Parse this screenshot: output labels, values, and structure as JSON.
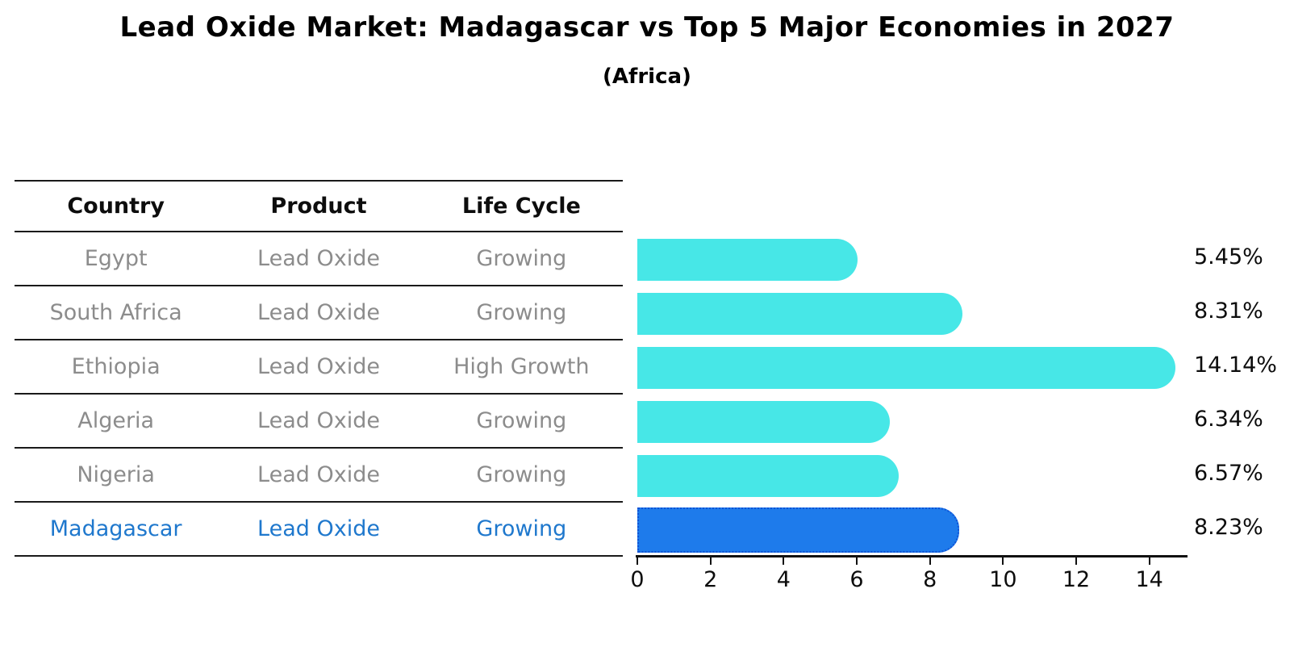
{
  "title": "Lead Oxide Market: Madagascar vs Top 5 Major Economies in 2027",
  "subtitle": "(Africa)",
  "table": {
    "headers": [
      "Country",
      "Product",
      "Life Cycle"
    ],
    "rows": [
      {
        "country": "Egypt",
        "product": "Lead Oxide",
        "life_cycle": "Growing",
        "value_label": "5.45%",
        "highlight": false
      },
      {
        "country": "South Africa",
        "product": "Lead Oxide",
        "life_cycle": "Growing",
        "value_label": "8.31%",
        "highlight": false
      },
      {
        "country": "Ethiopia",
        "product": "Lead Oxide",
        "life_cycle": "High Growth",
        "value_label": "14.14%",
        "highlight": false
      },
      {
        "country": "Algeria",
        "product": "Lead Oxide",
        "life_cycle": "Growing",
        "value_label": "6.34%",
        "highlight": false
      },
      {
        "country": "Nigeria",
        "product": "Lead Oxide",
        "life_cycle": "Growing",
        "value_label": "6.57%",
        "highlight": false
      },
      {
        "country": "Madagascar",
        "product": "Lead Oxide",
        "life_cycle": "Growing",
        "value_label": "8.23%",
        "highlight": true
      }
    ]
  },
  "chart_data": {
    "type": "bar",
    "orientation": "horizontal",
    "title": "Lead Oxide Market: Madagascar vs Top 5 Major Economies in 2027",
    "subtitle": "(Africa)",
    "categories": [
      "Egypt",
      "South Africa",
      "Ethiopia",
      "Algeria",
      "Nigeria",
      "Madagascar"
    ],
    "values": [
      5.45,
      8.31,
      14.14,
      6.34,
      6.57,
      8.23
    ],
    "value_labels": [
      "5.45%",
      "8.31%",
      "14.14%",
      "6.34%",
      "6.57%",
      "8.23%"
    ],
    "xlim": [
      0,
      15
    ],
    "x_ticks": [
      0,
      2,
      4,
      6,
      8,
      10,
      12,
      14
    ],
    "grid": false,
    "legend": "none",
    "bar_color": "#47e7e7",
    "highlight_bar_color": "#1e7beb",
    "highlight_index": 5
  },
  "colors": {
    "bar": "#47e7e7",
    "highlight_bar": "#1e7beb",
    "highlight_text": "#1f78cd",
    "row_text": "#8c8c8c",
    "header_text": "#0d0d0d",
    "line": "#1a1a1a"
  }
}
